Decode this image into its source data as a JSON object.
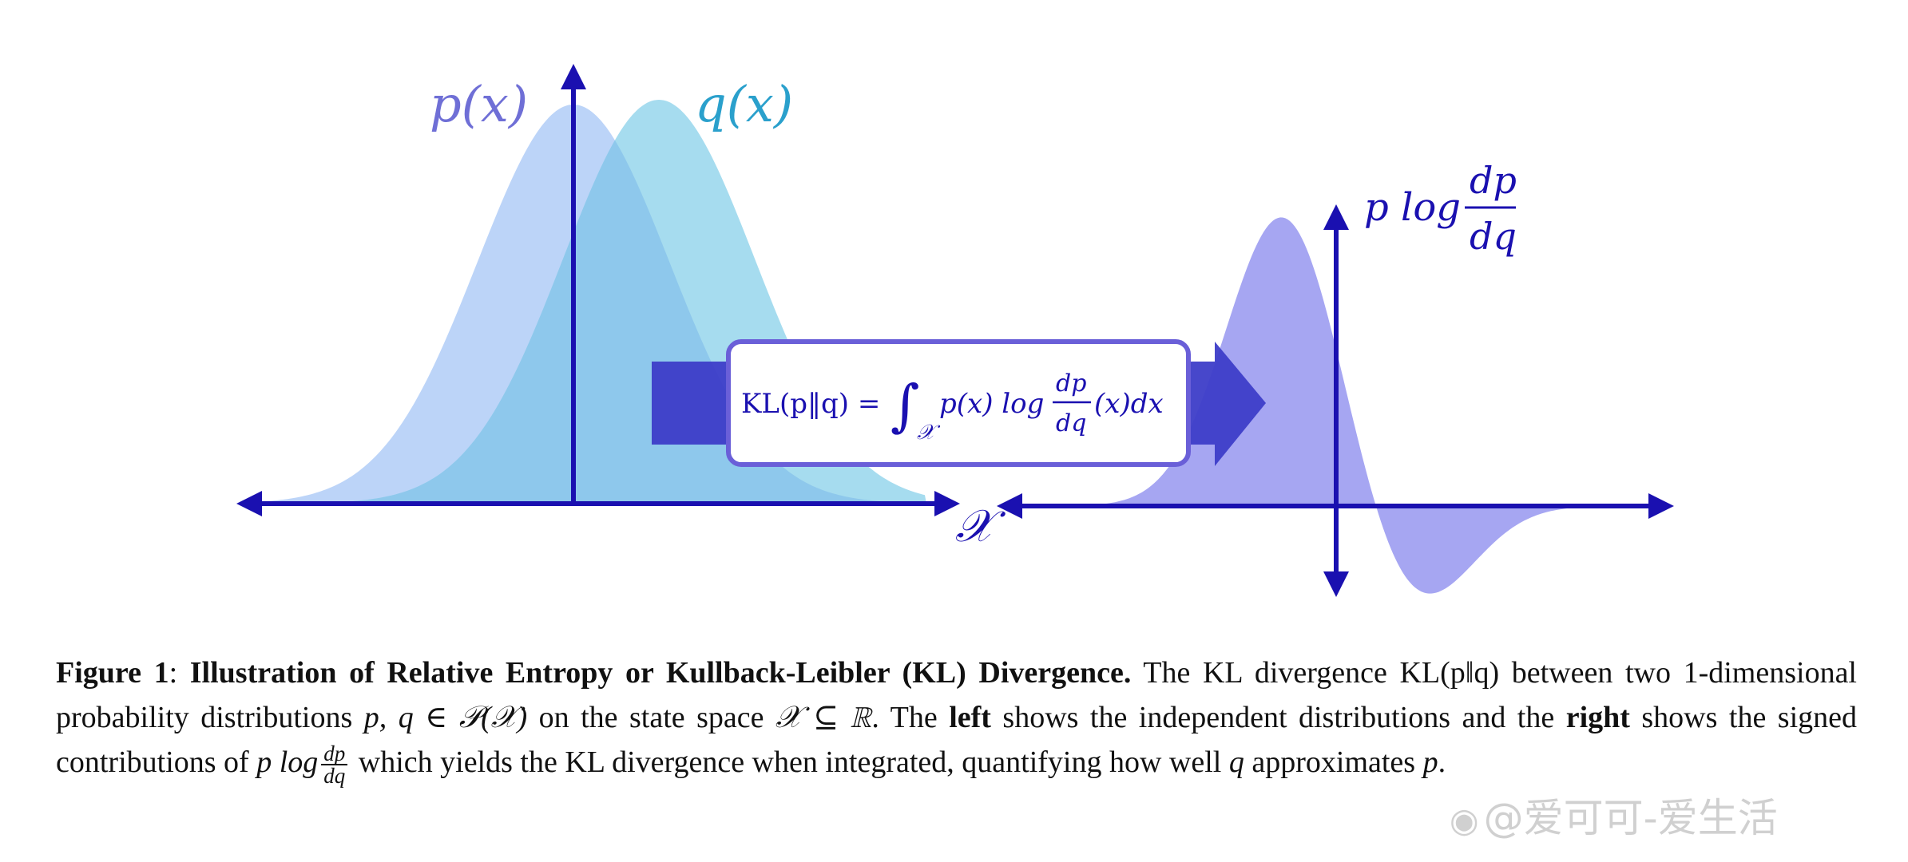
{
  "left_plot": {
    "p_label": "p(x)",
    "q_label": "q(x)",
    "x_axis_label": "𝒳"
  },
  "right_plot": {
    "y_label_prefix": "p log",
    "frac_num": "dp",
    "frac_den": "dq"
  },
  "kl_box": {
    "lhs": "KL(p‖q) = ",
    "integrand": "p(x) log",
    "frac_num": "dp",
    "frac_den": "dq",
    "tail": "(x)dx",
    "subscript": "𝒳"
  },
  "caption": {
    "fig_label": "Figure 1",
    "title": "Illustration of Relative Entropy or Kullback-Leibler (KL) Divergence.",
    "s1": " The KL divergence KL(p‖q) between two 1-dimensional probability distributions ",
    "math1": "p, q ∈ 𝒫(𝒳)",
    "s2": " on the state space ",
    "math2": "𝒳 ⊆ ℝ",
    "s3": ". The ",
    "left_word": "left",
    "s4": " shows the independent distributions and the ",
    "right_word": "right",
    "s5": " shows the signed contributions of ",
    "math3": "p log",
    "frac_num": "dp",
    "frac_den": "dq",
    "s6": " which yields the KL divergence when integrated, quantifying how well ",
    "q_var": "q",
    "s7": " approximates ",
    "p_var": "p",
    "s8": "."
  },
  "watermark": {
    "icon": "weibo-icon",
    "text": "@爱可可-爱生活"
  },
  "colors": {
    "axis": "#1a10b0",
    "p_fill": "#bcd4f8",
    "q_fill": "#a6dcef",
    "overlap": "#8ec8ec",
    "p_label": "#6f6fd6",
    "q_label": "#2aa0cc",
    "contrib_fill": "#a6a6f2",
    "arrow": "#3d3dc8",
    "box_border": "#6a5fd8"
  }
}
